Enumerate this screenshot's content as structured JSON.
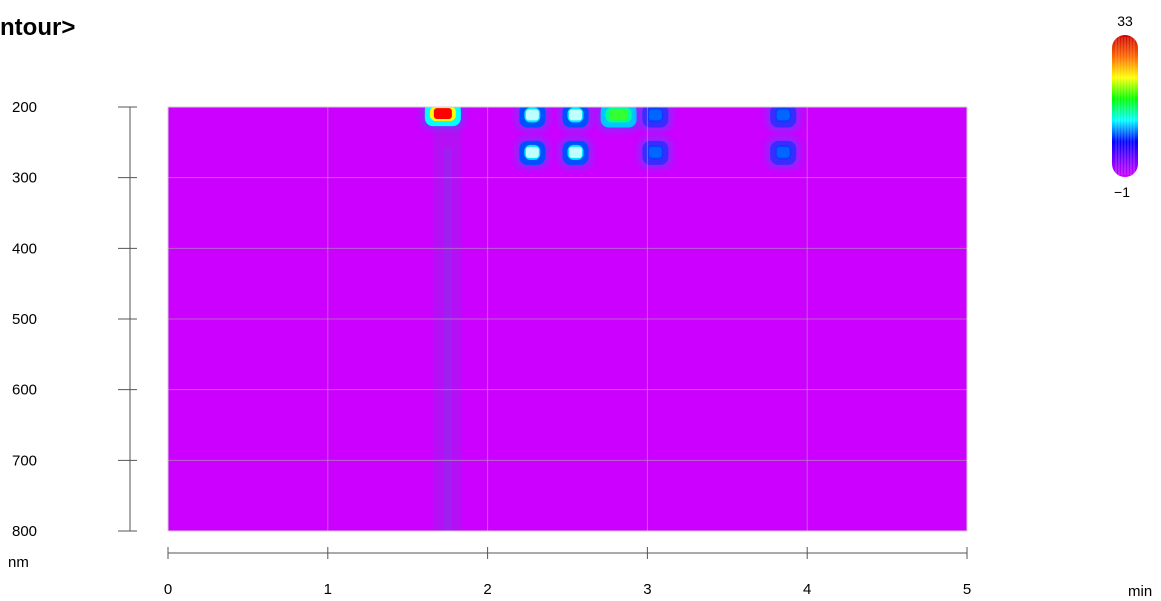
{
  "header": {
    "title": "ntour>"
  },
  "chart_data": {
    "type": "heatmap",
    "title": "ntour>",
    "xlabel": "min",
    "ylabel": "nm",
    "xlim": [
      0,
      5
    ],
    "ylim": [
      200,
      800
    ],
    "x_ticks": [
      "0",
      "1",
      "2",
      "3",
      "4",
      "5"
    ],
    "y_ticks": [
      "200",
      "300",
      "400",
      "500",
      "600",
      "700",
      "800"
    ],
    "grid": true,
    "colorbar": {
      "min": 33,
      "max_label": "33",
      "min_label": "−1",
      "min_value": -1,
      "placement": "top-right"
    },
    "colors": {
      "background": "#cc00ff",
      "band": "#8a2be2"
    },
    "band": {
      "x_start": 1.66,
      "x_end": 1.84
    },
    "spots": [
      {
        "x": 1.72,
        "y": 210,
        "value": 33
      },
      {
        "x": 2.28,
        "y": 212,
        "value": 14
      },
      {
        "x": 2.55,
        "y": 212,
        "value": 14
      },
      {
        "x": 2.82,
        "y": 212,
        "value": 20
      },
      {
        "x": 3.05,
        "y": 212,
        "value": 6
      },
      {
        "x": 3.85,
        "y": 212,
        "value": 6
      },
      {
        "x": 2.28,
        "y": 265,
        "value": 11
      },
      {
        "x": 2.55,
        "y": 265,
        "value": 11
      },
      {
        "x": 3.05,
        "y": 265,
        "value": 5
      },
      {
        "x": 3.85,
        "y": 265,
        "value": 5
      }
    ]
  }
}
